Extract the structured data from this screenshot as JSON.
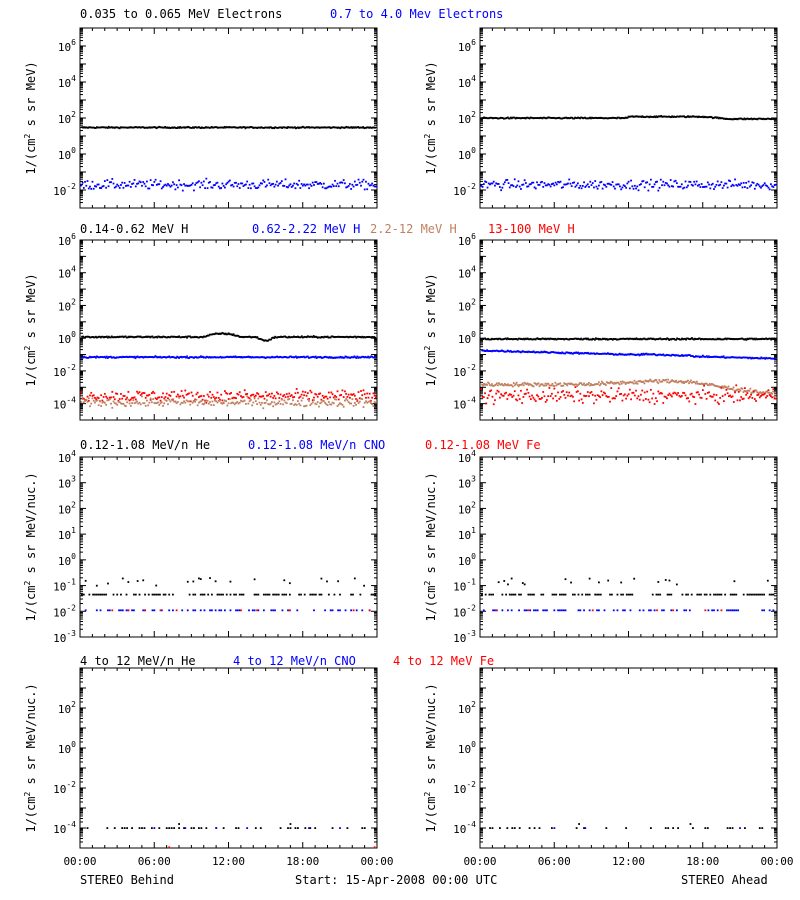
{
  "colors": {
    "black": "#000000",
    "blue": "#0000ff",
    "tan": "#c08060",
    "red": "#ff0000"
  },
  "footer": {
    "left": "STEREO Behind",
    "center": "Start: 15-Apr-2008 00:00 UTC",
    "right": "STEREO Ahead"
  },
  "chart_data": [
    {
      "id": "electrons",
      "type": "scatter",
      "ylog": true,
      "ylim": [
        0.001,
        10000000
      ],
      "yticks": [
        {
          "v": 0.01,
          "base": "10",
          "exp": "-2"
        },
        {
          "v": 1,
          "base": "10",
          "exp": "0"
        },
        {
          "v": 100,
          "base": "10",
          "exp": "2"
        },
        {
          "v": 10000,
          "base": "10",
          "exp": "4"
        },
        {
          "v": 1000000,
          "base": "10",
          "exp": "6"
        }
      ],
      "ylabel_text": "1/(cm",
      "ylabel_sup": "2",
      "ylabel_rest": " s sr MeV)",
      "legend": [
        {
          "text": "0.035 to 0.065 MeV Electrons",
          "color": "#000000"
        },
        {
          "text": "0.7 to 4.0 Mev Electrons",
          "color": "#0000ff"
        }
      ],
      "behind": [
        {
          "color": "#000000",
          "level": 30,
          "noise": 0.03,
          "pattern": "flat"
        },
        {
          "color": "#0000ff",
          "level": 0.02,
          "noise": 0.15,
          "pattern": "scatter"
        }
      ],
      "ahead": [
        {
          "color": "#000000",
          "level": 100,
          "noise": 0.03,
          "pattern": "ahead-e"
        },
        {
          "color": "#0000ff",
          "level": 0.02,
          "noise": 0.15,
          "pattern": "scatter"
        }
      ]
    },
    {
      "id": "protons",
      "type": "scatter",
      "ylog": true,
      "ylim": [
        1e-05,
        1000000
      ],
      "yticks": [
        {
          "v": 0.0001,
          "base": "10",
          "exp": "-4"
        },
        {
          "v": 0.01,
          "base": "10",
          "exp": "-2"
        },
        {
          "v": 1,
          "base": "10",
          "exp": "0"
        },
        {
          "v": 100,
          "base": "10",
          "exp": "2"
        },
        {
          "v": 10000,
          "base": "10",
          "exp": "4"
        },
        {
          "v": 1000000,
          "base": "10",
          "exp": "6"
        }
      ],
      "ylabel_text": "1/(cm",
      "ylabel_sup": "2",
      "ylabel_rest": " s sr MeV)",
      "legend": [
        {
          "text": "0.14-0.62 MeV H",
          "color": "#000000"
        },
        {
          "text": "0.62-2.22 MeV H",
          "color": "#0000ff"
        },
        {
          "text": "2.2-12 MeV H",
          "color": "#c08060"
        },
        {
          "text": "13-100 MeV H",
          "color": "#ff0000"
        }
      ],
      "behind": [
        {
          "color": "#000000",
          "level": 1.2,
          "noise": 0.04,
          "pattern": "bump"
        },
        {
          "color": "#0000ff",
          "level": 0.07,
          "noise": 0.04,
          "pattern": "flat"
        },
        {
          "color": "#ff0000",
          "level": 0.0003,
          "noise": 0.2,
          "pattern": "scatter"
        },
        {
          "color": "#c08060",
          "level": 0.00012,
          "noise": 0.15,
          "pattern": "scatter"
        }
      ],
      "ahead": [
        {
          "color": "#000000",
          "level": 0.9,
          "noise": 0.04,
          "pattern": "flat"
        },
        {
          "color": "#0000ff",
          "level": 0.18,
          "noise": 0.04,
          "pattern": "ahead-decl"
        },
        {
          "color": "#c08060",
          "level": 0.0015,
          "noise": 0.1,
          "pattern": "ahead-hump"
        },
        {
          "color": "#ff0000",
          "level": 0.0003,
          "noise": 0.25,
          "pattern": "scatter"
        }
      ]
    },
    {
      "id": "ions-low",
      "type": "scatter",
      "ylog": true,
      "ylim": [
        0.001,
        10000
      ],
      "yticks": [
        {
          "v": 0.001,
          "base": "10",
          "exp": "-3"
        },
        {
          "v": 0.01,
          "base": "10",
          "exp": "-2"
        },
        {
          "v": 0.1,
          "base": "10",
          "exp": "-1"
        },
        {
          "v": 1,
          "base": "10",
          "exp": "0"
        },
        {
          "v": 10,
          "base": "10",
          "exp": "1"
        },
        {
          "v": 100,
          "base": "10",
          "exp": "2"
        },
        {
          "v": 1000,
          "base": "10",
          "exp": "3"
        },
        {
          "v": 10000,
          "base": "10",
          "exp": "4"
        }
      ],
      "ylabel_text": "1/(cm",
      "ylabel_sup": "2",
      "ylabel_rest": " s sr MeV/nuc.)",
      "legend": [
        {
          "text": "0.12-1.08 MeV/n He",
          "color": "#000000"
        },
        {
          "text": "0.12-1.08 MeV/n CNO",
          "color": "#0000ff"
        },
        {
          "text": "0.12-1.08 MeV Fe",
          "color": "#ff0000"
        }
      ],
      "behind": [
        {
          "color": "#000000",
          "level": 0.045,
          "noise": 0.0,
          "pattern": "sparse-he"
        },
        {
          "color": "#0000ff",
          "level": 0.011,
          "noise": 0.0,
          "pattern": "sparse"
        },
        {
          "color": "#ff0000",
          "level": 0.011,
          "noise": 0.0,
          "pattern": "rare"
        }
      ],
      "ahead": [
        {
          "color": "#000000",
          "level": 0.045,
          "noise": 0.0,
          "pattern": "sparse-he"
        },
        {
          "color": "#0000ff",
          "level": 0.011,
          "noise": 0.0,
          "pattern": "sparse"
        },
        {
          "color": "#ff0000",
          "level": 0.011,
          "noise": 0.0,
          "pattern": "rare"
        }
      ]
    },
    {
      "id": "ions-high",
      "type": "scatter",
      "ylog": true,
      "ylim": [
        1e-05,
        10000
      ],
      "yticks": [
        {
          "v": 0.0001,
          "base": "10",
          "exp": "-4"
        },
        {
          "v": 0.01,
          "base": "10",
          "exp": "-2"
        },
        {
          "v": 1,
          "base": "10",
          "exp": "0"
        },
        {
          "v": 100,
          "base": "10",
          "exp": "2"
        }
      ],
      "ylabel_text": "1/(cm",
      "ylabel_sup": "2",
      "ylabel_rest": " s sr MeV/nuc.)",
      "legend": [
        {
          "text": "4 to 12 MeV/n He",
          "color": "#000000"
        },
        {
          "text": "4 to 12 MeV/n CNO",
          "color": "#0000ff"
        },
        {
          "text": "4 to 12 MeV Fe",
          "color": "#ff0000"
        }
      ],
      "behind": [
        {
          "color": "#000000",
          "level": 0.0001,
          "noise": 0.0,
          "pattern": "very-sparse"
        },
        {
          "color": "#0000ff",
          "level": 0.0001,
          "noise": 0.0,
          "pattern": "very-rare"
        },
        {
          "color": "#ff0000",
          "level": 1e-05,
          "noise": 0.0,
          "pattern": "one"
        }
      ],
      "ahead": [
        {
          "color": "#000000",
          "level": 0.0001,
          "noise": 0.0,
          "pattern": "very-sparse"
        },
        {
          "color": "#0000ff",
          "level": 0.0001,
          "noise": 0.0,
          "pattern": "very-rare"
        }
      ]
    }
  ],
  "xaxis": {
    "range": [
      0,
      24
    ],
    "unit": "hours",
    "ticks": [
      {
        "v": 0,
        "label": "00:00"
      },
      {
        "v": 6,
        "label": "06:00"
      },
      {
        "v": 12,
        "label": "12:00"
      },
      {
        "v": 18,
        "label": "18:00"
      },
      {
        "v": 24,
        "label": "00:00"
      }
    ]
  }
}
